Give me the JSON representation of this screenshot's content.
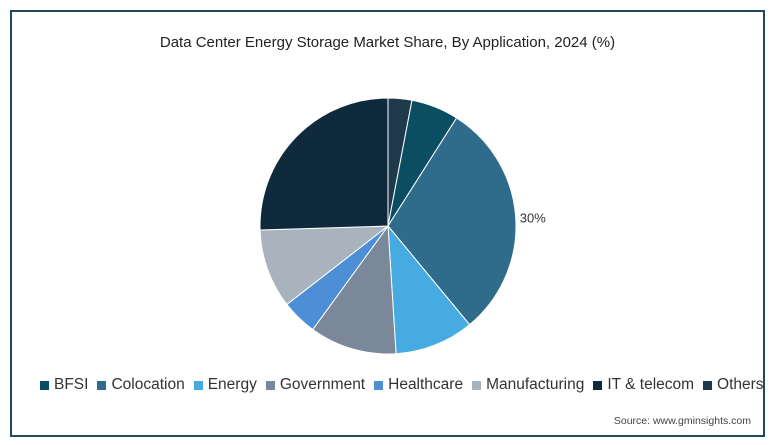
{
  "chart_data": {
    "type": "pie",
    "title": "Data Center Energy Storage Market Share, By Application, 2024 (%)",
    "categories": [
      "Others",
      "BFSI",
      "Colocation",
      "Energy",
      "Government",
      "Healthcare",
      "Manufacturing",
      "IT & telecom"
    ],
    "values": [
      3,
      6,
      30,
      10,
      11,
      4.5,
      10,
      25.5
    ],
    "colors": [
      "#1f3a4d",
      "#0b4d61",
      "#2f6b8a",
      "#45abe1",
      "#7a8899",
      "#4c8fd6",
      "#a8b3bd",
      "#0f2a3d"
    ],
    "data_labels": [
      {
        "category": "Colocation",
        "text": "30%"
      }
    ],
    "legend": {
      "position": "bottom",
      "items": [
        {
          "label": "BFSI",
          "color": "#0b4d61"
        },
        {
          "label": "Colocation",
          "color": "#2f6b8a"
        },
        {
          "label": "Energy",
          "color": "#45abe1"
        },
        {
          "label": "Government",
          "color": "#7a8899"
        },
        {
          "label": "Healthcare",
          "color": "#4c8fd6"
        },
        {
          "label": "Manufacturing",
          "color": "#a8b3bd"
        },
        {
          "label": "IT & telecom",
          "color": "#0f2a3d"
        },
        {
          "label": "Others",
          "color": "#1f3a4d"
        }
      ]
    }
  },
  "source": "Source: www.gminsights.com"
}
